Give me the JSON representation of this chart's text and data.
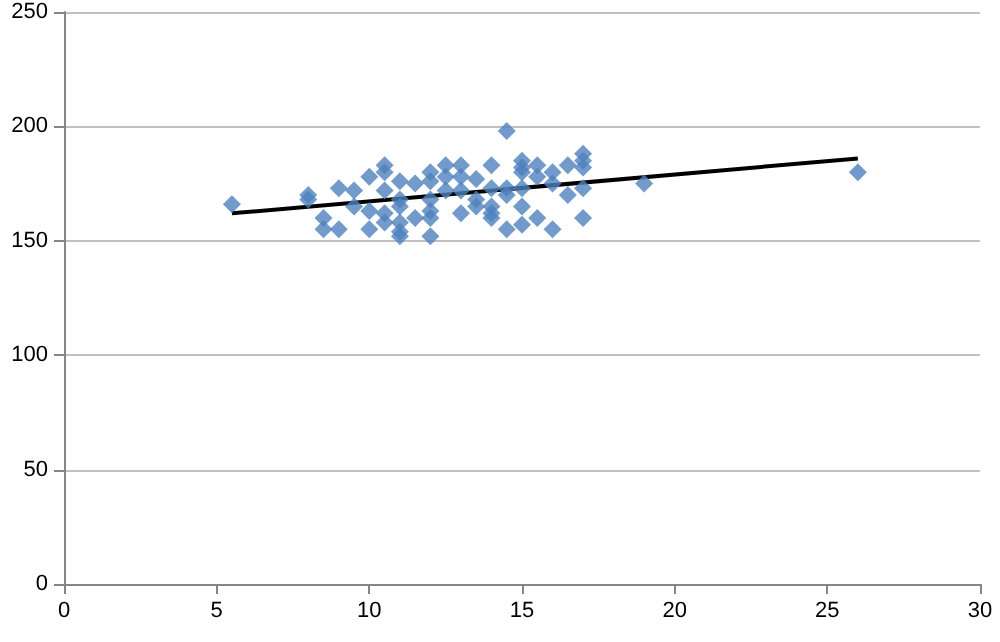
{
  "chart_data": {
    "type": "scatter",
    "marker": "diamond",
    "grid": "y",
    "xlim": [
      0,
      30
    ],
    "xticks": [
      0,
      5,
      10,
      15,
      20,
      25,
      30
    ],
    "ylim": [
      0,
      250
    ],
    "yticks": [
      0,
      50,
      100,
      150,
      200,
      250
    ],
    "series": [
      {
        "color": "#4f81bd",
        "x": [
          5.5,
          8,
          8,
          8.5,
          8.5,
          9,
          9,
          9.5,
          9.5,
          10,
          10,
          10,
          10.5,
          10.5,
          10.5,
          10.5,
          10.5,
          11,
          11,
          11,
          11,
          11,
          11,
          11.5,
          11.5,
          12,
          12,
          12,
          12,
          12,
          12,
          12.5,
          12.5,
          12.5,
          13,
          13,
          13,
          13,
          13.5,
          13.5,
          13.5,
          14,
          14,
          14,
          14,
          14,
          14.5,
          14.5,
          14.5,
          14.5,
          15,
          15,
          15,
          15,
          15,
          15,
          15.5,
          15.5,
          15.5,
          16,
          16,
          16,
          16.5,
          16.5,
          17,
          17,
          17,
          17,
          17,
          19,
          26
        ],
        "values": [
          166,
          170,
          168,
          160,
          155,
          173,
          155,
          172,
          165,
          178,
          163,
          155,
          183,
          180,
          172,
          162,
          158,
          176,
          168,
          165,
          158,
          154,
          152,
          175,
          160,
          180,
          176,
          168,
          163,
          160,
          152,
          183,
          178,
          172,
          183,
          178,
          172,
          162,
          177,
          168,
          165,
          183,
          173,
          165,
          162,
          160,
          198,
          173,
          170,
          155,
          185,
          182,
          180,
          173,
          165,
          157,
          183,
          178,
          160,
          180,
          175,
          155,
          183,
          170,
          188,
          185,
          182,
          173,
          160,
          175,
          180
        ]
      },
      {
        "type": "line",
        "color": "#000000",
        "marker": "none",
        "x": [
          5.5,
          26
        ],
        "values": [
          162,
          186
        ]
      }
    ]
  }
}
